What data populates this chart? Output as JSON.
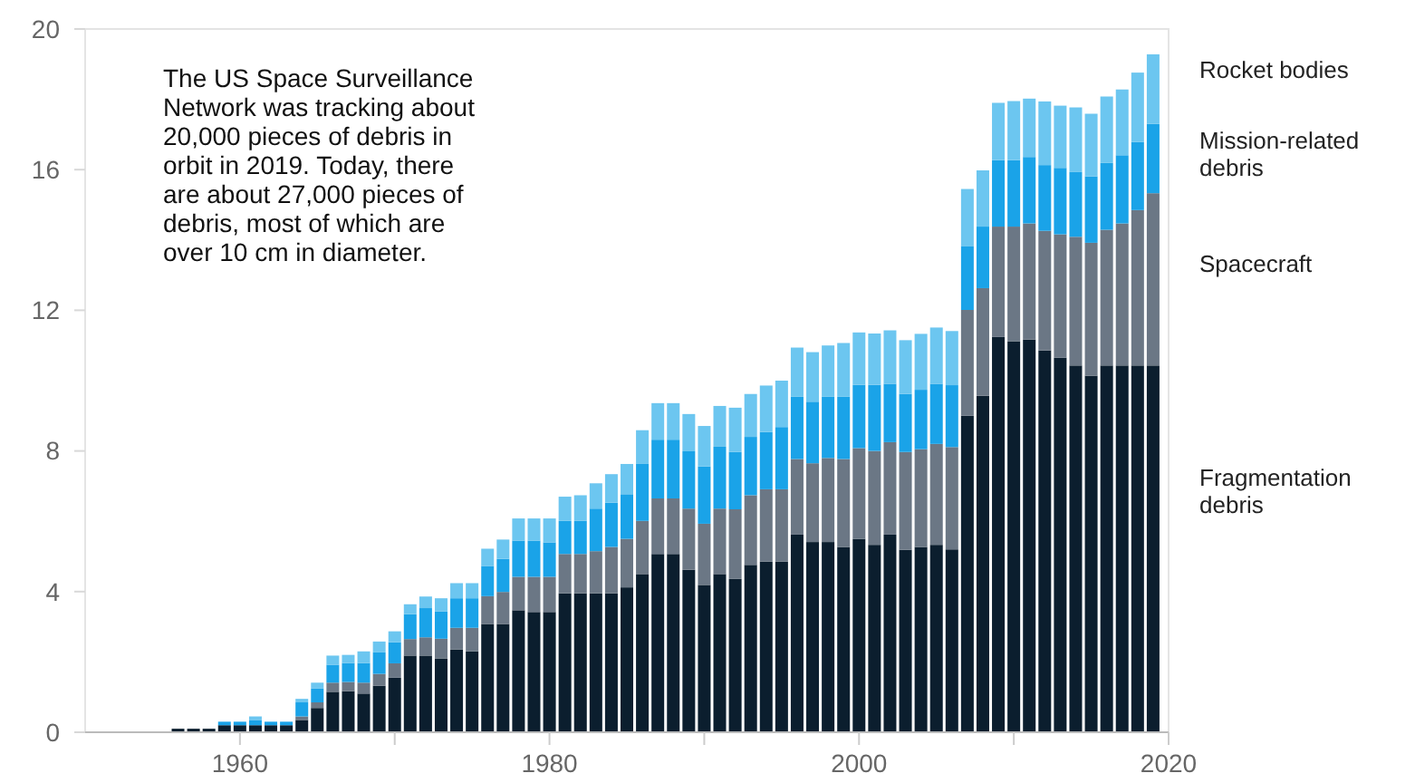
{
  "chart_data": {
    "type": "bar",
    "stacked": true,
    "x": [
      1956,
      1957,
      1958,
      1959,
      1960,
      1961,
      1962,
      1963,
      1964,
      1965,
      1966,
      1967,
      1968,
      1969,
      1970,
      1971,
      1972,
      1973,
      1974,
      1975,
      1976,
      1977,
      1978,
      1979,
      1980,
      1981,
      1982,
      1983,
      1984,
      1985,
      1986,
      1987,
      1988,
      1989,
      1990,
      1991,
      1992,
      1993,
      1994,
      1995,
      1996,
      1997,
      1998,
      1999,
      2000,
      2001,
      2002,
      2003,
      2004,
      2005,
      2006,
      2007,
      2008,
      2009,
      2010,
      2011,
      2012,
      2013,
      2014,
      2015,
      2016,
      2017,
      2018,
      2019
    ],
    "series": [
      {
        "name": "Fragmentation debris",
        "color": "#0b1e2e",
        "values": [
          0.1,
          0.1,
          0.1,
          0.2,
          0.2,
          0.2,
          0.2,
          0.2,
          0.35,
          0.69,
          1.15,
          1.17,
          1.1,
          1.32,
          1.55,
          2.18,
          2.18,
          2.1,
          2.35,
          2.3,
          3.08,
          3.08,
          3.47,
          3.42,
          3.42,
          3.95,
          3.95,
          3.95,
          3.95,
          4.12,
          4.5,
          5.07,
          5.07,
          4.62,
          4.19,
          4.5,
          4.36,
          4.76,
          4.85,
          4.85,
          5.62,
          5.41,
          5.41,
          5.27,
          5.5,
          5.33,
          5.62,
          5.19,
          5.27,
          5.33,
          5.2,
          9.0,
          9.57,
          11.24,
          11.12,
          11.17,
          10.86,
          10.65,
          10.43,
          10.14,
          10.43,
          10.43,
          10.43,
          10.43
        ]
      },
      {
        "name": "Spacecraft",
        "color": "#6b7785",
        "values": [
          0,
          0,
          0,
          0,
          0,
          0,
          0,
          0,
          0.1,
          0.16,
          0.26,
          0.26,
          0.31,
          0.34,
          0.41,
          0.47,
          0.52,
          0.56,
          0.62,
          0.67,
          0.79,
          0.91,
          0.95,
          1.0,
          1.0,
          1.12,
          1.12,
          1.2,
          1.32,
          1.38,
          1.51,
          1.58,
          1.58,
          1.74,
          1.74,
          1.86,
          1.98,
          1.98,
          2.06,
          2.06,
          2.15,
          2.24,
          2.39,
          2.5,
          2.58,
          2.67,
          2.63,
          2.78,
          2.78,
          2.87,
          2.91,
          3.01,
          3.06,
          3.14,
          3.26,
          3.3,
          3.4,
          3.51,
          3.66,
          3.78,
          3.86,
          4.04,
          4.42,
          4.9
        ]
      },
      {
        "name": "Mission-related debris",
        "color": "#1aa3e8",
        "values": [
          0,
          0,
          0,
          0.1,
          0.1,
          0.15,
          0.1,
          0.1,
          0.4,
          0.39,
          0.51,
          0.54,
          0.56,
          0.61,
          0.6,
          0.71,
          0.83,
          0.78,
          0.84,
          0.84,
          0.86,
          0.94,
          1.03,
          1.03,
          0.98,
          0.94,
          0.94,
          1.21,
          1.26,
          1.27,
          1.62,
          1.67,
          1.67,
          1.63,
          1.63,
          1.76,
          1.63,
          1.66,
          1.63,
          1.77,
          1.77,
          1.75,
          1.74,
          1.77,
          1.8,
          1.88,
          1.66,
          1.65,
          1.69,
          1.71,
          1.76,
          1.82,
          1.75,
          1.89,
          1.89,
          1.89,
          1.87,
          1.89,
          1.84,
          1.89,
          1.9,
          1.94,
          1.94,
          1.97
        ]
      },
      {
        "name": "Rocket bodies",
        "color": "#6cc6f0",
        "values": [
          0,
          0,
          0,
          0,
          0,
          0.1,
          0,
          0,
          0.1,
          0.17,
          0.26,
          0.23,
          0.33,
          0.31,
          0.31,
          0.28,
          0.33,
          0.37,
          0.43,
          0.43,
          0.49,
          0.55,
          0.63,
          0.63,
          0.68,
          0.69,
          0.73,
          0.72,
          0.81,
          0.86,
          0.96,
          1.04,
          1.04,
          1.06,
          1.15,
          1.16,
          1.26,
          1.22,
          1.32,
          1.32,
          1.4,
          1.41,
          1.46,
          1.53,
          1.49,
          1.46,
          1.52,
          1.53,
          1.59,
          1.6,
          1.54,
          1.62,
          1.6,
          1.63,
          1.68,
          1.66,
          1.81,
          1.77,
          1.84,
          1.78,
          1.89,
          1.87,
          1.97,
          1.98
        ]
      }
    ],
    "xlim": [
      1950,
      2020
    ],
    "xticks": [
      1960,
      {
        "value": 1970,
        "label": null
      },
      1980,
      {
        "value": 1990,
        "label": null
      },
      2000,
      {
        "value": 2010,
        "label": null
      },
      2020
    ],
    "ylim": [
      0,
      20
    ],
    "yticks": [
      0,
      4,
      8,
      12,
      16,
      20
    ],
    "grid": false,
    "legend": "right",
    "annotations": [
      "The US Space Surveillance Network was tracking about 20,000 pieces of debris in orbit in 2019. Today, there are about 27,000 pieces of debris, most of which are over 10 cm in diameter."
    ]
  }
}
